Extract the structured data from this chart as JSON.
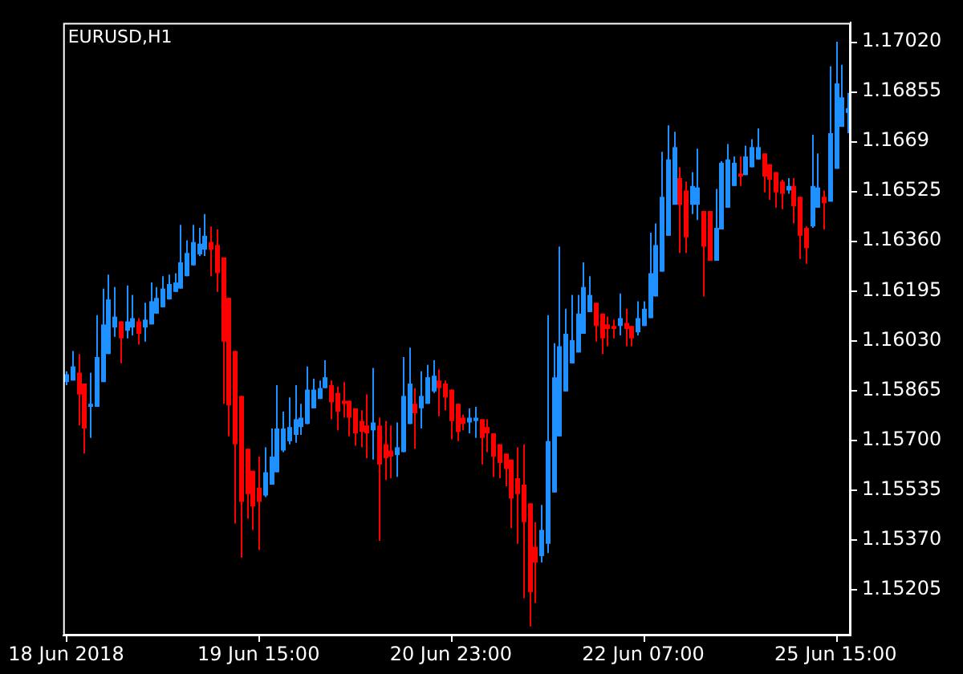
{
  "chart_data": {
    "type": "candlestick",
    "title": "EURUSD,H1",
    "categories": [
      "18 Jun 2018",
      null,
      null,
      null,
      null,
      null,
      null,
      null,
      null,
      null,
      null,
      null,
      null,
      null,
      null,
      null,
      null,
      null,
      null,
      null,
      null,
      null,
      null,
      null,
      null,
      null,
      null,
      null,
      null,
      null,
      null,
      null,
      "19 Jun 15:00",
      null,
      null,
      null,
      null,
      null,
      null,
      null,
      null,
      null,
      null,
      null,
      null,
      null,
      null,
      null,
      null,
      null,
      null,
      null,
      null,
      null,
      null,
      null,
      null,
      null,
      null,
      null,
      null,
      null,
      null,
      null,
      "20 Jun 23:00",
      null,
      null,
      null,
      null,
      null,
      null,
      null,
      null,
      null,
      null,
      null,
      null,
      null,
      null,
      null,
      null,
      null,
      null,
      null,
      null,
      null,
      null,
      null,
      null,
      null,
      null,
      null,
      null,
      null,
      null,
      null,
      "22 Jun 07:00",
      null,
      null,
      null,
      null,
      null,
      null,
      null,
      null,
      null,
      null,
      null,
      null,
      null,
      null,
      null,
      null,
      null,
      null,
      null,
      null,
      null,
      null,
      null,
      null,
      null,
      null,
      null,
      null,
      null,
      null,
      null,
      "25 Jun 15:00",
      null,
      null
    ],
    "ohlc": [
      [
        1.15892,
        1.15928,
        1.15882,
        1.15918
      ],
      [
        1.15897,
        1.15995,
        1.15897,
        1.15944
      ],
      [
        1.15923,
        1.15985,
        1.15748,
        1.15851
      ],
      [
        1.15887,
        1.15887,
        1.15655,
        1.15738
      ],
      [
        1.1581,
        1.15923,
        1.15707,
        1.1582
      ],
      [
        1.1581,
        1.16114,
        1.1581,
        1.15975
      ],
      [
        1.15892,
        1.16202,
        1.15892,
        1.16083
      ],
      [
        1.15985,
        1.16248,
        1.15985,
        1.16166
      ],
      [
        1.16073,
        1.16207,
        1.16042,
        1.16109
      ],
      [
        1.16093,
        1.16093,
        1.15954,
        1.16037
      ],
      [
        1.16062,
        1.16212,
        1.16037,
        1.16093
      ],
      [
        1.16073,
        1.16181,
        1.16047,
        1.16104
      ],
      [
        1.16093,
        1.16104,
        1.16016,
        1.16052
      ],
      [
        1.16073,
        1.16155,
        1.16026,
        1.16099
      ],
      [
        1.16083,
        1.16222,
        1.16083,
        1.1616
      ],
      [
        1.16119,
        1.16207,
        1.16119,
        1.16171
      ],
      [
        1.1614,
        1.16243,
        1.1614,
        1.16202
      ],
      [
        1.16166,
        1.16248,
        1.16166,
        1.16217
      ],
      [
        1.16191,
        1.16253,
        1.16191,
        1.16222
      ],
      [
        1.16202,
        1.16413,
        1.16202,
        1.16289
      ],
      [
        1.16243,
        1.16362,
        1.16243,
        1.1632
      ],
      [
        1.16279,
        1.16413,
        1.16279,
        1.16356
      ],
      [
        1.16315,
        1.16403,
        1.1631,
        1.16351
      ],
      [
        1.16331,
        1.16449,
        1.1631,
        1.16377
      ],
      [
        1.16356,
        1.16408,
        1.16243,
        1.16331
      ],
      [
        1.16346,
        1.16398,
        1.16191,
        1.16253
      ],
      [
        1.16305,
        1.16305,
        1.1582,
        1.16026
      ],
      [
        1.16171,
        1.16171,
        1.15712,
        1.15815
      ],
      [
        1.15995,
        1.15995,
        1.15423,
        1.15686
      ],
      [
        1.15846,
        1.15846,
        1.1531,
        1.15495
      ],
      [
        1.15671,
        1.15671,
        1.15439,
        1.15521
      ],
      [
        1.15598,
        1.15598,
        1.15402,
        1.1548
      ],
      [
        1.15542,
        1.15645,
        1.15335,
        1.15495
      ],
      [
        1.15516,
        1.15676,
        1.15511,
        1.15593
      ],
      [
        1.15552,
        1.15738,
        1.15552,
        1.15645
      ],
      [
        1.15593,
        1.15882,
        1.15593,
        1.15738
      ],
      [
        1.15665,
        1.15794,
        1.1566,
        1.15738
      ],
      [
        1.15696,
        1.15841,
        1.15686,
        1.15743
      ],
      [
        1.15717,
        1.15882,
        1.15691,
        1.15769
      ],
      [
        1.15743,
        1.1582,
        1.15717,
        1.15774
      ],
      [
        1.15753,
        1.15944,
        1.15753,
        1.15867
      ],
      [
        1.15805,
        1.15903,
        1.15805,
        1.15867
      ],
      [
        1.15836,
        1.15897,
        1.15836,
        1.15872
      ],
      [
        1.15872,
        1.15964,
        1.15872,
        1.15908
      ],
      [
        1.15882,
        1.15897,
        1.15769,
        1.15825
      ],
      [
        1.15856,
        1.15877,
        1.15732,
        1.15794
      ],
      [
        1.1583,
        1.15892,
        1.15774,
        1.1582
      ],
      [
        1.1583,
        1.1583,
        1.15712,
        1.15774
      ],
      [
        1.15805,
        1.15805,
        1.15681,
        1.15722
      ],
      [
        1.15763,
        1.15799,
        1.15676,
        1.15727
      ],
      [
        1.15748,
        1.15851,
        1.1564,
        1.15722
      ],
      [
        1.15732,
        1.15939,
        1.15635,
        1.15758
      ],
      [
        1.15748,
        1.15774,
        1.15366,
        1.15619
      ],
      [
        1.15686,
        1.15763,
        1.15567,
        1.1564
      ],
      [
        1.15665,
        1.15748,
        1.15573,
        1.15645
      ],
      [
        1.1565,
        1.15758,
        1.15578,
        1.15676
      ],
      [
        1.1566,
        1.15975,
        1.1566,
        1.15846
      ],
      [
        1.15753,
        1.16006,
        1.15753,
        1.15887
      ],
      [
        1.1582,
        1.15872,
        1.15671,
        1.15789
      ],
      [
        1.15805,
        1.15928,
        1.15738,
        1.15846
      ],
      [
        1.1582,
        1.15949,
        1.1582,
        1.15908
      ],
      [
        1.15861,
        1.15964,
        1.15856,
        1.15913
      ],
      [
        1.15897,
        1.15934,
        1.15779,
        1.15872
      ],
      [
        1.15887,
        1.15897,
        1.15799,
        1.15841
      ],
      [
        1.15867,
        1.15867,
        1.15702,
        1.15763
      ],
      [
        1.1582,
        1.1582,
        1.15696,
        1.15727
      ],
      [
        1.15774,
        1.15784,
        1.15732,
        1.15753
      ],
      [
        1.15758,
        1.15805,
        1.15722,
        1.15774
      ],
      [
        1.15763,
        1.1581,
        1.15707,
        1.15774
      ],
      [
        1.15769,
        1.15769,
        1.15619,
        1.15707
      ],
      [
        1.15743,
        1.15769,
        1.1566,
        1.15722
      ],
      [
        1.15722,
        1.15722,
        1.15578,
        1.15645
      ],
      [
        1.15686,
        1.15686,
        1.15573,
        1.15624
      ],
      [
        1.15655,
        1.15655,
        1.15547,
        1.15604
      ],
      [
        1.15635,
        1.15635,
        1.15408,
        1.15506
      ],
      [
        1.15573,
        1.15676,
        1.15356,
        1.15521
      ],
      [
        1.15552,
        1.15686,
        1.15176,
        1.15428
      ],
      [
        1.1549,
        1.1549,
        1.15082,
        1.15196
      ],
      [
        1.15346,
        1.15428,
        1.1516,
        1.15294
      ],
      [
        1.15315,
        1.15485,
        1.15294,
        1.15402
      ],
      [
        1.15356,
        1.16114,
        1.15325,
        1.15696
      ],
      [
        1.15526,
        1.16021,
        1.15526,
        1.15908
      ],
      [
        1.15712,
        1.16341,
        1.15712,
        1.16011
      ],
      [
        1.15861,
        1.16135,
        1.15861,
        1.16052
      ],
      [
        1.15954,
        1.16181,
        1.15954,
        1.16031
      ],
      [
        1.1599,
        1.16181,
        1.1599,
        1.16119
      ],
      [
        1.16052,
        1.16289,
        1.16052,
        1.16207
      ],
      [
        1.16124,
        1.16243,
        1.16124,
        1.16181
      ],
      [
        1.16155,
        1.16155,
        1.16026,
        1.16078
      ],
      [
        1.16119,
        1.16119,
        1.15985,
        1.16037
      ],
      [
        1.16083,
        1.16109,
        1.16011,
        1.16068
      ],
      [
        1.16078,
        1.16099,
        1.16037,
        1.16068
      ],
      [
        1.16078,
        1.16186,
        1.16047,
        1.16104
      ],
      [
        1.16088,
        1.16135,
        1.16011,
        1.16068
      ],
      [
        1.16078,
        1.16078,
        1.16011,
        1.16037
      ],
      [
        1.16057,
        1.1616,
        1.16047,
        1.16104
      ],
      [
        1.16078,
        1.1616,
        1.16078,
        1.16135
      ],
      [
        1.16104,
        1.16387,
        1.16104,
        1.16253
      ],
      [
        1.16176,
        1.16418,
        1.16176,
        1.16346
      ],
      [
        1.16258,
        1.16655,
        1.16258,
        1.16506
      ],
      [
        1.16377,
        1.16743,
        1.16377,
        1.1663
      ],
      [
        1.1648,
        1.16722,
        1.1648,
        1.16671
      ],
      [
        1.16568,
        1.16604,
        1.1632,
        1.1648
      ],
      [
        1.16527,
        1.16557,
        1.1632,
        1.16372
      ],
      [
        1.1648,
        1.16588,
        1.16449,
        1.16542
      ],
      [
        1.1648,
        1.16666,
        1.16429,
        1.16537
      ],
      [
        1.16459,
        1.16459,
        1.16176,
        1.16341
      ],
      [
        1.16459,
        1.16459,
        1.16294,
        1.16294
      ],
      [
        1.16294,
        1.16532,
        1.16294,
        1.16403
      ],
      [
        1.16398,
        1.16624,
        1.16398,
        1.16619
      ],
      [
        1.1647,
        1.16681,
        1.1647,
        1.1663
      ],
      [
        1.16542,
        1.1664,
        1.16542,
        1.16619
      ],
      [
        1.16583,
        1.1664,
        1.16542,
        1.16573
      ],
      [
        1.16578,
        1.16676,
        1.16578,
        1.1664
      ],
      [
        1.16604,
        1.16697,
        1.16604,
        1.16671
      ],
      [
        1.1663,
        1.16733,
        1.1663,
        1.16671
      ],
      [
        1.1665,
        1.1665,
        1.16521,
        1.16573
      ],
      [
        1.16614,
        1.16614,
        1.16496,
        1.16563
      ],
      [
        1.16588,
        1.16588,
        1.1647,
        1.16521
      ],
      [
        1.16557,
        1.16563,
        1.16465,
        1.16516
      ],
      [
        1.16527,
        1.16568,
        1.16516,
        1.16542
      ],
      [
        1.16542,
        1.16568,
        1.16418,
        1.16475
      ],
      [
        1.16506,
        1.16506,
        1.163,
        1.16377
      ],
      [
        1.16403,
        1.16408,
        1.16284,
        1.16336
      ],
      [
        1.16408,
        1.16712,
        1.16403,
        1.16542
      ],
      [
        1.1647,
        1.1665,
        1.1647,
        1.16537
      ],
      [
        1.16506,
        1.16527,
        1.16398,
        1.16485
      ],
      [
        1.1649,
        1.16939,
        1.1649,
        1.16717
      ],
      [
        1.16599,
        1.1702,
        1.16599,
        1.16882
      ],
      [
        1.16738,
        1.16944,
        1.16738,
        1.16836
      ],
      [
        1.16784,
        1.16851,
        1.16717,
        1.168
      ]
    ],
    "colors": [
      "#1e90ff",
      "#1e90ff",
      "#ff0000",
      "#ff0000",
      "#1e90ff",
      "#1e90ff",
      "#1e90ff",
      "#1e90ff",
      "#1e90ff",
      "#ff0000",
      "#1e90ff",
      "#1e90ff",
      "#ff0000",
      "#1e90ff",
      "#1e90ff",
      "#1e90ff",
      "#1e90ff",
      "#1e90ff",
      "#1e90ff",
      "#1e90ff",
      "#1e90ff",
      "#1e90ff",
      "#1e90ff",
      "#1e90ff",
      "#ff0000",
      "#ff0000",
      "#ff0000",
      "#ff0000",
      "#ff0000",
      "#ff0000",
      "#ff0000",
      "#ff0000",
      "#ff0000",
      "#1e90ff",
      "#1e90ff",
      "#1e90ff",
      "#1e90ff",
      "#1e90ff",
      "#1e90ff",
      "#1e90ff",
      "#1e90ff",
      "#1e90ff",
      "#1e90ff",
      "#1e90ff",
      "#ff0000",
      "#ff0000",
      "#ff0000",
      "#ff0000",
      "#ff0000",
      "#ff0000",
      "#ff0000",
      "#1e90ff",
      "#ff0000",
      "#ff0000",
      "#ff0000",
      "#1e90ff",
      "#1e90ff",
      "#1e90ff",
      "#ff0000",
      "#1e90ff",
      "#1e90ff",
      "#1e90ff",
      "#ff0000",
      "#ff0000",
      "#ff0000",
      "#ff0000",
      "#ff0000",
      "#1e90ff",
      "#1e90ff",
      "#ff0000",
      "#ff0000",
      "#ff0000",
      "#ff0000",
      "#ff0000",
      "#ff0000",
      "#ff0000",
      "#ff0000",
      "#ff0000",
      "#ff0000",
      "#1e90ff",
      "#1e90ff",
      "#1e90ff",
      "#1e90ff",
      "#1e90ff",
      "#1e90ff",
      "#1e90ff",
      "#1e90ff",
      "#1e90ff",
      "#ff0000",
      "#ff0000",
      "#ff0000",
      "#ff0000",
      "#1e90ff",
      "#ff0000",
      "#ff0000",
      "#1e90ff",
      "#1e90ff",
      "#1e90ff",
      "#1e90ff",
      "#1e90ff",
      "#1e90ff",
      "#1e90ff",
      "#ff0000",
      "#ff0000",
      "#1e90ff",
      "#1e90ff",
      "#ff0000",
      "#ff0000",
      "#1e90ff",
      "#1e90ff",
      "#1e90ff",
      "#1e90ff",
      "#ff0000",
      "#1e90ff",
      "#1e90ff",
      "#1e90ff",
      "#ff0000",
      "#ff0000",
      "#ff0000",
      "#ff0000",
      "#1e90ff",
      "#ff0000",
      "#ff0000",
      "#ff0000",
      "#1e90ff",
      "#1e90ff",
      "#ff0000",
      "#1e90ff",
      "#1e90ff",
      "#1e90ff",
      "#1e90ff"
    ],
    "ylim": [
      1.15052,
      1.17083
    ],
    "yticks": [
      {
        "value": 1.1702,
        "label": "1.17020"
      },
      1.16855,
      1.1669,
      1.16525,
      {
        "value": 1.1636,
        "label": "1.16360"
      },
      1.16195,
      {
        "value": 1.1603,
        "label": "1.16030"
      },
      1.15865,
      {
        "value": 1.157,
        "label": "1.15700"
      },
      1.15535,
      {
        "value": 1.1537,
        "label": "1.15370"
      },
      1.15205
    ]
  }
}
